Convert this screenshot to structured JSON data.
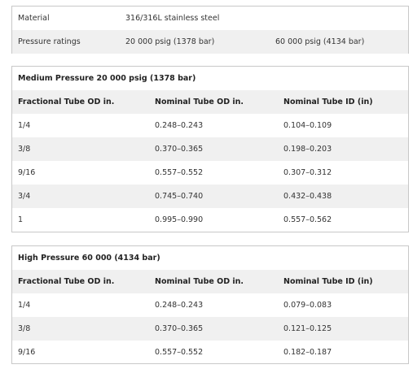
{
  "specs": {
    "rows": [
      {
        "label": "Material",
        "values": [
          "316/316L stainless steel",
          ""
        ]
      },
      {
        "label": "Pressure ratings",
        "values": [
          "20 000 psig (1378 bar)",
          "60 000 psig (4134 bar)"
        ]
      }
    ]
  },
  "medium": {
    "title": "Medium Pressure 20 000 psig (1378 bar)",
    "headers": [
      "Fractional Tube OD in.",
      "Nominal Tube OD in.",
      "Nominal Tube ID (in)"
    ],
    "rows": [
      [
        "1/4",
        "0.248–0.243",
        "0.104–0.109"
      ],
      [
        "3/8",
        "0.370–0.365",
        "0.198–0.203"
      ],
      [
        "9/16",
        "0.557–0.552",
        "0.307–0.312"
      ],
      [
        "3/4",
        "0.745–0.740",
        "0.432–0.438"
      ],
      [
        "1",
        "0.995–0.990",
        "0.557–0.562"
      ]
    ]
  },
  "high": {
    "title": "High Pressure 60 000 (4134 bar)",
    "headers": [
      "Fractional Tube OD in.",
      "Nominal Tube OD in.",
      "Nominal Tube ID (in)"
    ],
    "rows": [
      [
        "1/4",
        "0.248–0.243",
        "0.079–0.083"
      ],
      [
        "3/8",
        "0.370–0.365",
        "0.121–0.125"
      ],
      [
        "9/16",
        "0.557–0.552",
        "0.182–0.187"
      ]
    ]
  }
}
